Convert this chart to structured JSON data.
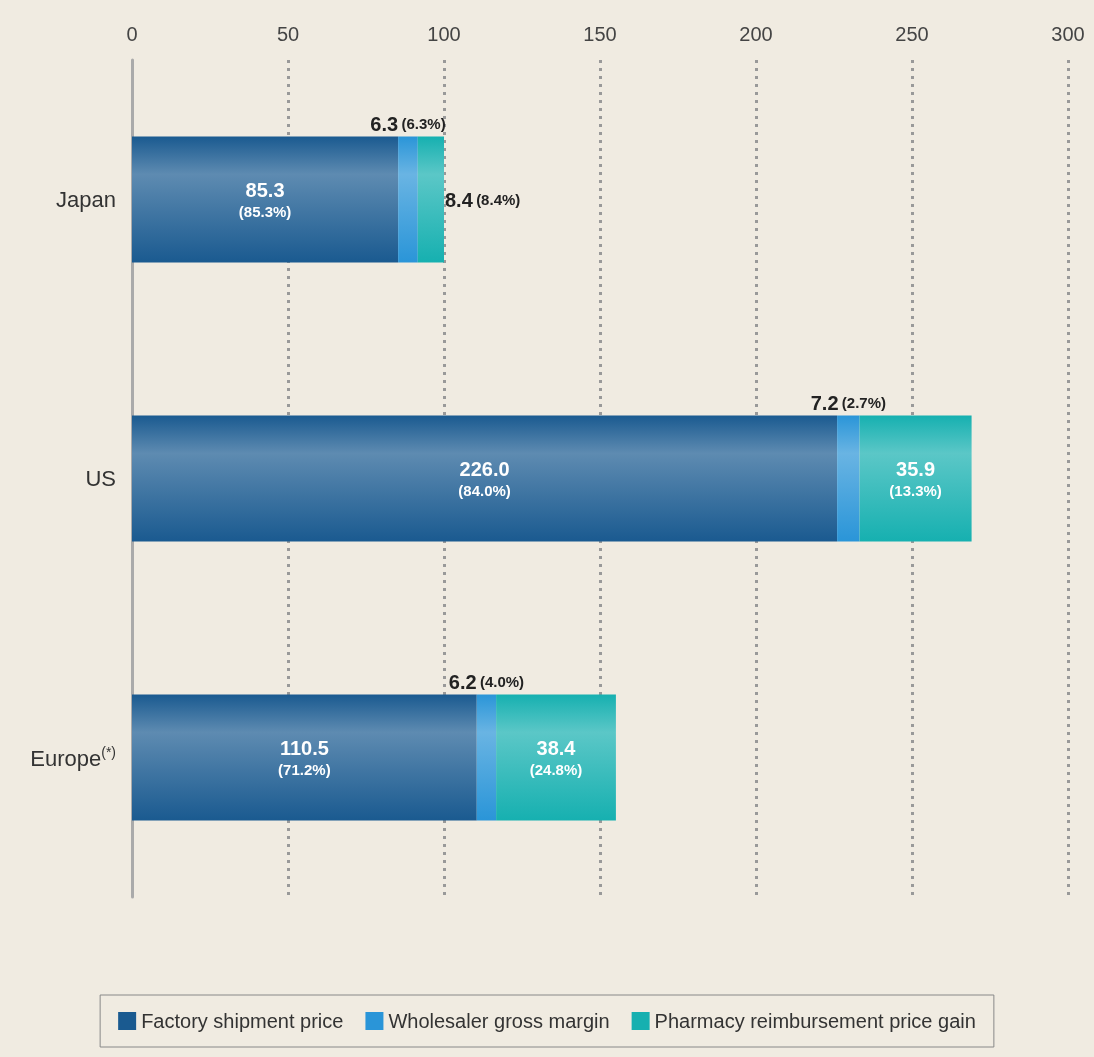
{
  "chart_data": {
    "type": "bar",
    "orientation": "horizontal",
    "stacked": true,
    "categories": [
      "Japan",
      "US",
      "Europe$^{(*)}$"
    ],
    "series": [
      {
        "name": "Factory shipment price",
        "color": "#1a5a90",
        "values": [
          85.3,
          226.0,
          110.5
        ],
        "value_labels": [
          "85.3 (85.3%)",
          "226.0 (84.0%)",
          "110.5 (71.2%)"
        ]
      },
      {
        "name": "Wholesaler gross margin",
        "color": "#2a95d8",
        "values": [
          6.3,
          7.2,
          6.2
        ],
        "value_labels": [
          "6.3 (6.3%)",
          "7.2 (2.7%)",
          "6.2 (4.0%)"
        ]
      },
      {
        "name": "Pharmacy reimbursement price gain",
        "color": "#16b0b0",
        "values": [
          8.4,
          35.9,
          38.4
        ],
        "value_labels": [
          "8.4 (8.4%)",
          "35.9 (13.3%)",
          "38.4 (24.8%)"
        ]
      }
    ],
    "xlim": [
      0,
      300
    ],
    "xticks": [
      0,
      50,
      100,
      150,
      200,
      250,
      300
    ],
    "grid": "x",
    "legend": "bottom"
  }
}
